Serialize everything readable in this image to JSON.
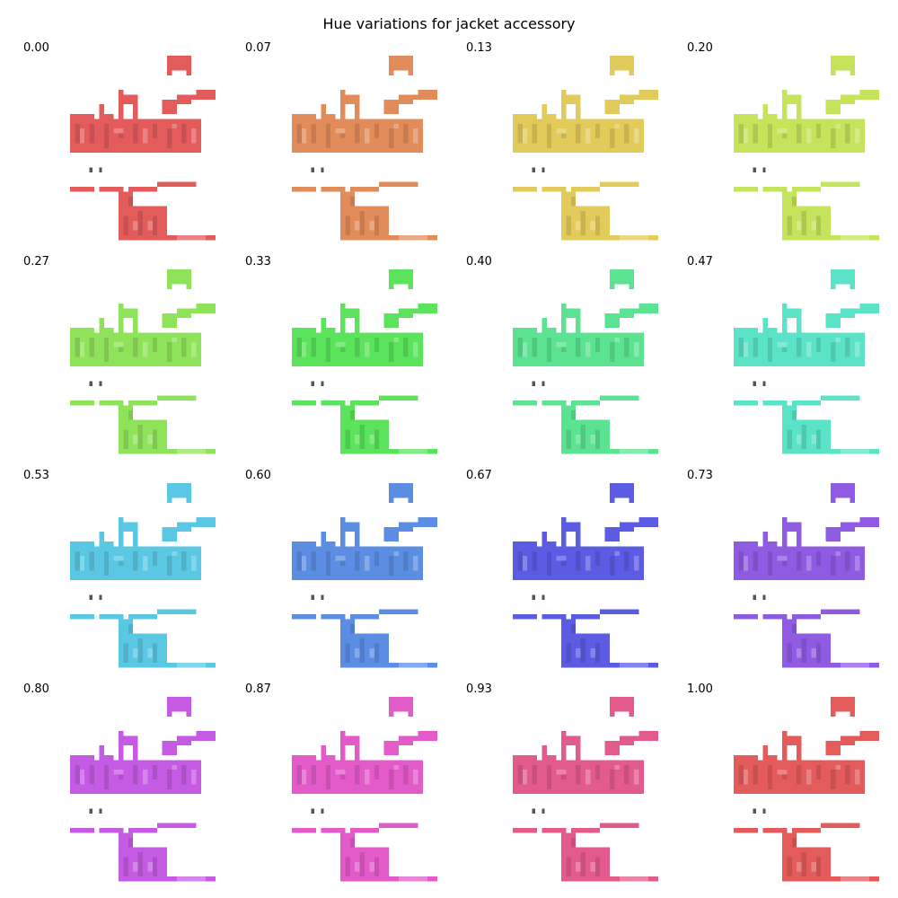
{
  "title": "Hue variations for jacket accessory",
  "panels": [
    {
      "label": "0.00",
      "color": "#e35b5b"
    },
    {
      "label": "0.07",
      "color": "#e38c5b"
    },
    {
      "label": "0.13",
      "color": "#e3cb5b"
    },
    {
      "label": "0.20",
      "color": "#c5e35b"
    },
    {
      "label": "0.27",
      "color": "#8fe35b"
    },
    {
      "label": "0.33",
      "color": "#5be35b"
    },
    {
      "label": "0.40",
      "color": "#5be391"
    },
    {
      "label": "0.47",
      "color": "#5be3c8"
    },
    {
      "label": "0.53",
      "color": "#5bc8e3"
    },
    {
      "label": "0.60",
      "color": "#5b8de3"
    },
    {
      "label": "0.67",
      "color": "#5b5be3"
    },
    {
      "label": "0.73",
      "color": "#8f5be3"
    },
    {
      "label": "0.80",
      "color": "#c55be3"
    },
    {
      "label": "0.87",
      "color": "#e35bc8"
    },
    {
      "label": "0.93",
      "color": "#e35b8c"
    },
    {
      "label": "1.00",
      "color": "#e35b5b"
    }
  ],
  "pixel_color": "#555555"
}
